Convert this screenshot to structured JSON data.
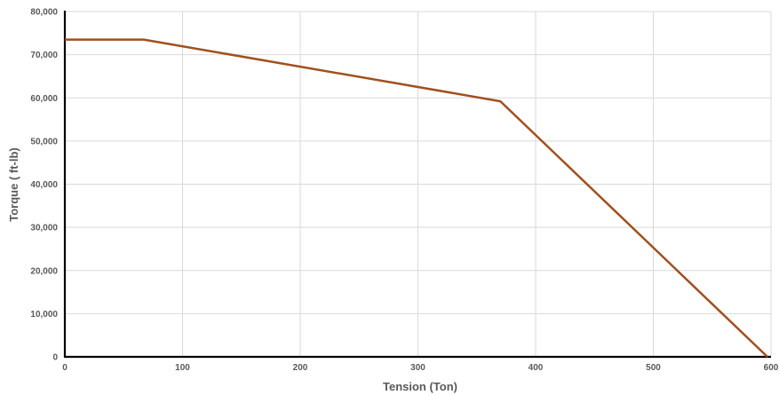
{
  "chart_data": {
    "type": "line",
    "xlabel": "Tension (Ton)",
    "ylabel": "Torque ( ft-lb)",
    "xlim": [
      0,
      600
    ],
    "ylim": [
      0,
      80000
    ],
    "x_ticks": [
      0,
      100,
      200,
      300,
      400,
      500,
      600
    ],
    "y_ticks": [
      0,
      10000,
      20000,
      30000,
      40000,
      50000,
      60000,
      70000,
      80000
    ],
    "x_tick_labels": [
      "0",
      "100",
      "200",
      "300",
      "400",
      "500",
      "600"
    ],
    "y_tick_labels": [
      "0",
      "10,000",
      "20,000",
      "30,000",
      "40,000",
      "50,000",
      "60,000",
      "70,000",
      "80,000"
    ],
    "grid": true,
    "legend": "none",
    "series": [
      {
        "color": "#a0501e",
        "points": [
          {
            "x": 0,
            "y": 73500
          },
          {
            "x": 67,
            "y": 73500
          },
          {
            "x": 370,
            "y": 59200
          },
          {
            "x": 597,
            "y": 0
          }
        ]
      }
    ]
  }
}
